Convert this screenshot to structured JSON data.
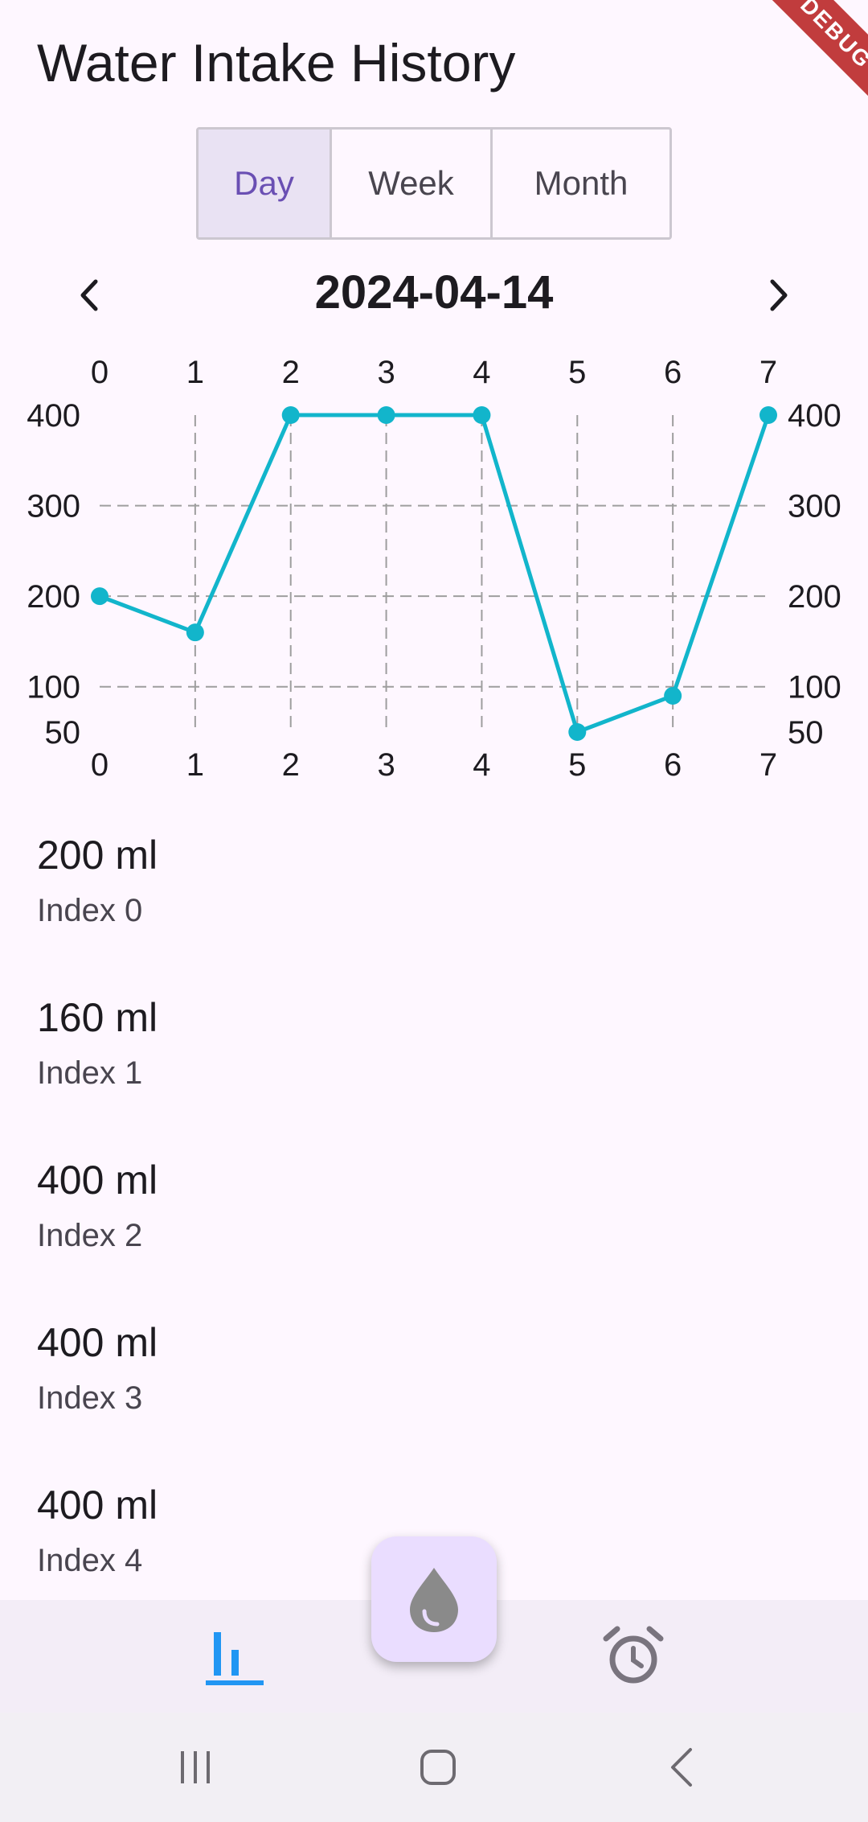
{
  "app": {
    "title": "Water Intake History",
    "debug_banner": "DEBUG"
  },
  "segments": [
    {
      "label": "Day",
      "selected": true
    },
    {
      "label": "Week",
      "selected": false
    },
    {
      "label": "Month",
      "selected": false
    }
  ],
  "date_nav": {
    "date": "2024-04-14",
    "prev_icon": "chevron-left-icon",
    "next_icon": "chevron-right-icon"
  },
  "chart_data": {
    "type": "line",
    "x": [
      0,
      1,
      2,
      3,
      4,
      5,
      6,
      7
    ],
    "series": [
      {
        "values": [
          200,
          160,
          400,
          400,
          400,
          50,
          90,
          400
        ],
        "color": "#12b5cb"
      }
    ],
    "x_ticks": [
      "0",
      "1",
      "2",
      "3",
      "4",
      "5",
      "6",
      "7"
    ],
    "y_ticks": [
      "400",
      "300",
      "200",
      "100",
      "50"
    ],
    "ylim": [
      50,
      400
    ],
    "xlim": [
      0,
      7
    ],
    "grid": true,
    "title": "",
    "xlabel": "",
    "ylabel": ""
  },
  "list": [
    {
      "value": "200 ml",
      "label": "Index 0"
    },
    {
      "value": "160 ml",
      "label": "Index 1"
    },
    {
      "value": "400 ml",
      "label": "Index 2"
    },
    {
      "value": "400 ml",
      "label": "Index 3"
    },
    {
      "value": "400 ml",
      "label": "Index 4"
    }
  ],
  "bottom_nav": {
    "tabs": [
      {
        "icon": "bar-chart-icon",
        "active": true
      },
      {
        "icon": "alarm-clock-icon",
        "active": false
      }
    ],
    "fab_icon": "water-drop-icon"
  },
  "colors": {
    "accent": "#6a4fb3",
    "line": "#12b5cb",
    "active_tab": "#2196f3",
    "fab": "#eaddff"
  }
}
